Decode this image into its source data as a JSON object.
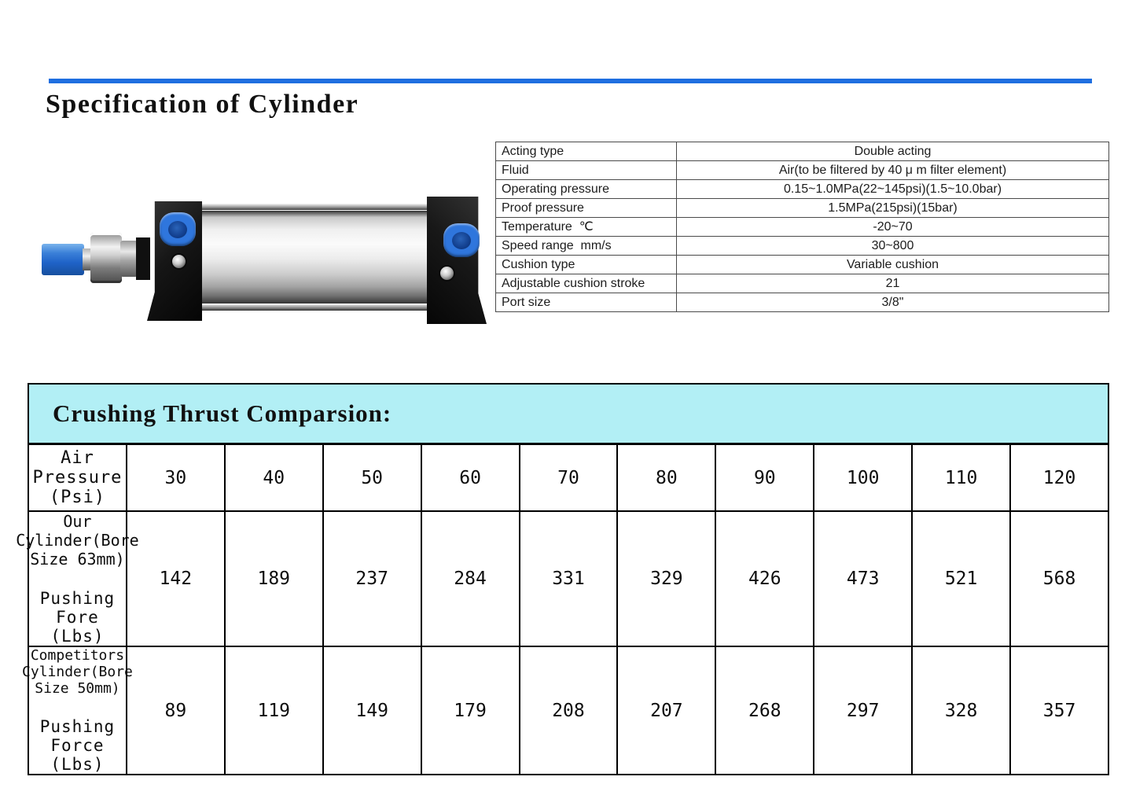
{
  "page": {
    "title": "Specification of Cylinder"
  },
  "colors": {
    "accent_line_blue": "#1f6fe0",
    "comparison_header_bg": "#b2eff5",
    "port_blue": "#2f76dd"
  },
  "cylinder_image": {
    "description": "double-acting pneumatic air cylinder with silver barrel, black end caps, blue air ports and blue rod cap"
  },
  "spec_table": {
    "rows": [
      {
        "label": "Acting type",
        "value": "Double acting"
      },
      {
        "label": "Fluid",
        "value": "Air(to be filtered by 40 μ m filter element)"
      },
      {
        "label": "Operating pressure",
        "value": "0.15~1.0MPa(22~145psi)(1.5~10.0bar)"
      },
      {
        "label": "Proof pressure",
        "value": "1.5MPa(215psi)(15bar)"
      },
      {
        "label": "Temperature  ℃",
        "value": "-20~70"
      },
      {
        "label": "Speed range  mm/s",
        "value": "30~800"
      },
      {
        "label": "Cushion type",
        "value": "Variable cushion"
      },
      {
        "label": "Adjustable cushion stroke",
        "value": "21"
      },
      {
        "label": "Port size",
        "value": "3/8\""
      }
    ]
  },
  "comparison": {
    "title": "Crushing Thrust Comparsion:",
    "rows": [
      {
        "line1": "Air Pressure (Psi)",
        "line2": "",
        "values": [
          "30",
          "40",
          "50",
          "60",
          "70",
          "80",
          "90",
          "100",
          "110",
          "120"
        ]
      },
      {
        "line1": "Our Cylinder(Bore Size 63mm)",
        "line2": "Pushing Fore (Lbs)",
        "values": [
          "142",
          "189",
          "237",
          "284",
          "331",
          "329",
          "426",
          "473",
          "521",
          "568"
        ]
      },
      {
        "line1": "Competitors Cylinder(Bore Size 50mm)",
        "line2": "Pushing Force (Lbs)",
        "values": [
          "89",
          "119",
          "149",
          "179",
          "208",
          "207",
          "268",
          "297",
          "328",
          "357"
        ]
      }
    ]
  }
}
